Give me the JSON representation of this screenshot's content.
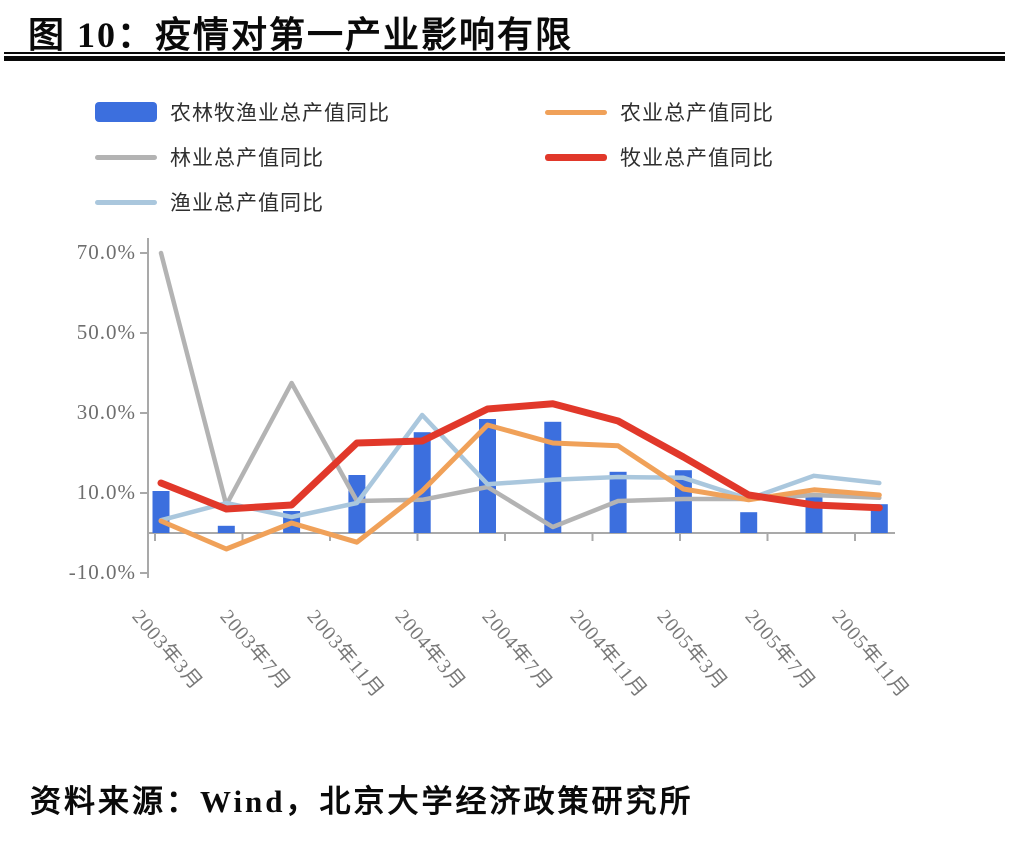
{
  "title": "图 10：疫情对第一产业影响有限",
  "source": "资料来源：Wind，北京大学经济政策研究所",
  "legend": {
    "items": [
      {
        "label": "农林牧渔业总产值同比",
        "swatch": "bar",
        "color": "#3c6fde"
      },
      {
        "label": "农业总产值同比",
        "swatch": "line",
        "color": "#f0a159"
      },
      {
        "label": "林业总产值同比",
        "swatch": "line",
        "color": "#b3b3b3"
      },
      {
        "label": "牧业总产值同比",
        "swatch": "line-thick",
        "color": "#e1382a"
      },
      {
        "label": "渔业总产值同比",
        "swatch": "line",
        "color": "#aac7dd"
      }
    ]
  },
  "chart_data": {
    "type": "combo-bar-line",
    "n_points": 12,
    "x_tick_labels": [
      "2003年3月",
      "2003年7月",
      "2003年11月",
      "2004年3月",
      "2004年7月",
      "2004年11月",
      "2005年3月",
      "2005年7月",
      "2005年11月"
    ],
    "y_ticks": [
      "70.0%",
      "50.0%",
      "30.0%",
      "10.0%",
      "-10.0%"
    ],
    "y_tick_values": [
      70,
      50,
      30,
      10,
      -10
    ],
    "ylim": [
      -10,
      70
    ],
    "grid": "off",
    "legend_position": "top-left",
    "unit": "%",
    "series": [
      {
        "name": "农林牧渔业总产值同比",
        "type": "bar",
        "color": "#3c6fde",
        "values": [
          10.5,
          1.8,
          5.5,
          14.5,
          25.2,
          28.5,
          27.8,
          15.3,
          15.7,
          5.2,
          9.3,
          7.2
        ]
      },
      {
        "name": "农业总产值同比",
        "type": "line",
        "color": "#f0a159",
        "values": [
          3.0,
          -4.0,
          2.5,
          -2.3,
          10.5,
          27.0,
          22.5,
          21.8,
          11.0,
          8.3,
          10.8,
          9.5
        ]
      },
      {
        "name": "林业总产值同比",
        "type": "line",
        "color": "#b3b3b3",
        "values": [
          70.0,
          7.0,
          37.5,
          8.0,
          8.3,
          11.5,
          1.5,
          8.0,
          8.5,
          8.5,
          9.5,
          8.8
        ]
      },
      {
        "name": "牧业总产值同比",
        "type": "line",
        "color": "#e1382a",
        "values": [
          12.5,
          6.0,
          7.0,
          22.5,
          23.0,
          31.0,
          32.3,
          28.0,
          19.0,
          9.5,
          7.0,
          6.3
        ]
      },
      {
        "name": "渔业总产值同比",
        "type": "line",
        "color": "#aac7dd",
        "values": [
          3.2,
          7.5,
          4.0,
          7.5,
          29.5,
          12.2,
          13.3,
          14.0,
          13.8,
          8.5,
          14.3,
          12.5
        ]
      }
    ]
  }
}
